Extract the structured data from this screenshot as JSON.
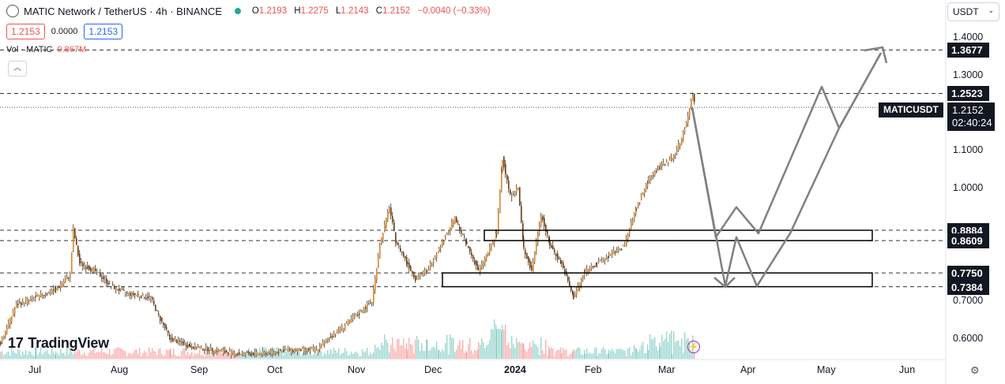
{
  "header": {
    "title": "MATIC Network / TetherUS · 4h · BINANCE",
    "o_label": "O",
    "o": "1.2193",
    "h_label": "H",
    "h": "1.2275",
    "l_label": "L",
    "l": "1.2143",
    "c_label": "C",
    "c": "1.2152",
    "change": "−0.0040 (−0.33%)"
  },
  "price_boxes": {
    "sell": "1.2153",
    "spread": "0.0000",
    "buy": "1.2153"
  },
  "volume": {
    "label": "Vol · MATIC",
    "value": "9.867M"
  },
  "currency": "USDT",
  "colors": {
    "up": "#26a69a",
    "down": "#ef5350",
    "drawing": "#808080",
    "label_bg": "#131722"
  },
  "symbol_label": "MATICUSDT",
  "last_price": {
    "price": "1.2152",
    "countdown": "02:40:24"
  },
  "price_labels": [
    "1.3677",
    "1.2523",
    "0.8884",
    "0.8609",
    "0.7750",
    "0.7384"
  ],
  "y_ticks": [
    "1.4000",
    "1.3000",
    "1.1000",
    "1.0000",
    "0.7000",
    "0.6000"
  ],
  "x_ticks": [
    "Jul",
    "Aug",
    "Sep",
    "Oct",
    "Nov",
    "Dec",
    "2024",
    "Feb",
    "Mar",
    "Apr",
    "May",
    "Jun"
  ],
  "brand": "TradingView",
  "chart_data": {
    "type": "line",
    "title": "MATIC Network / TetherUS · 4h · BINANCE",
    "x": [
      "Jul",
      "Aug",
      "Sep",
      "Oct",
      "Nov",
      "Dec",
      "2024",
      "Feb",
      "Mar"
    ],
    "series": [
      {
        "values": [
          0.7,
          0.7,
          0.57,
          0.55,
          0.74,
          0.8,
          0.95,
          0.8,
          1.215
        ]
      }
    ],
    "horizontal_levels": [
      1.3677,
      1.2523,
      0.8884,
      0.8609,
      0.775,
      0.7384
    ],
    "zones": [
      [
        0.8609,
        0.8884
      ],
      [
        0.7384,
        0.775
      ]
    ],
    "last": 1.2152,
    "ylim": [
      0.55,
      1.42
    ],
    "projection_path_a": [
      1.215,
      0.87,
      0.95,
      0.88,
      1.27,
      1.16,
      1.36
    ],
    "projection_path_b": [
      1.215,
      0.74,
      0.87,
      0.74,
      0.88,
      1.16,
      1.36
    ]
  }
}
